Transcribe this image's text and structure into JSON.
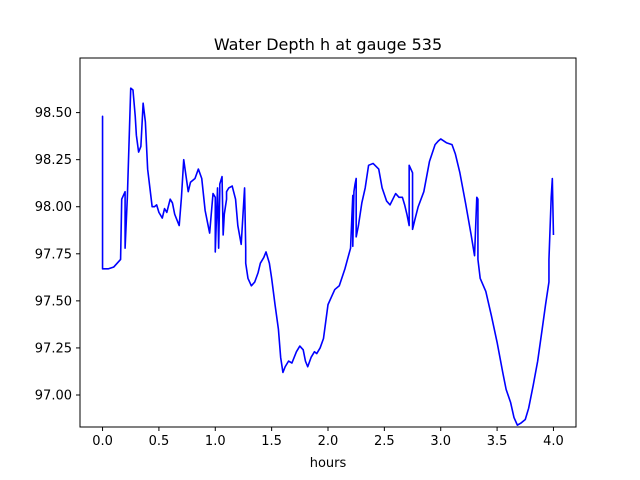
{
  "chart_data": {
    "type": "line",
    "title": "Water Depth h at gauge 535",
    "xlabel": "hours",
    "ylabel": "",
    "xlim": [
      -0.2,
      4.2
    ],
    "ylim": [
      96.83,
      98.79
    ],
    "xticks": [
      0.0,
      0.5,
      1.0,
      1.5,
      2.0,
      2.5,
      3.0,
      3.5,
      4.0
    ],
    "xtick_labels": [
      "0.0",
      "0.5",
      "1.0",
      "1.5",
      "2.0",
      "2.5",
      "3.0",
      "3.5",
      "4.0"
    ],
    "yticks": [
      97.0,
      97.25,
      97.5,
      97.75,
      98.0,
      98.25,
      98.5
    ],
    "ytick_labels": [
      "97.00",
      "97.25",
      "97.50",
      "97.75",
      "98.00",
      "98.25",
      "98.50"
    ],
    "grid": false,
    "legend": "none",
    "series": [
      {
        "color": "#0000ff",
        "x": [
          0.0,
          0.0,
          0.0,
          0.05,
          0.1,
          0.13,
          0.16,
          0.17,
          0.17,
          0.2,
          0.2,
          0.22,
          0.25,
          0.27,
          0.29,
          0.3,
          0.32,
          0.34,
          0.36,
          0.38,
          0.4,
          0.42,
          0.44,
          0.46,
          0.48,
          0.5,
          0.53,
          0.55,
          0.57,
          0.6,
          0.62,
          0.64,
          0.66,
          0.68,
          0.7,
          0.72,
          0.76,
          0.78,
          0.82,
          0.85,
          0.88,
          0.91,
          0.93,
          0.95,
          0.98,
          1.0,
          1.0,
          1.02,
          1.03,
          1.04,
          1.04,
          1.06,
          1.07,
          1.08,
          1.1,
          1.1,
          1.12,
          1.15,
          1.18,
          1.2,
          1.23,
          1.26,
          1.27,
          1.27,
          1.29,
          1.32,
          1.35,
          1.38,
          1.4,
          1.43,
          1.45,
          1.48,
          1.5,
          1.53,
          1.56,
          1.58,
          1.6,
          1.62,
          1.65,
          1.68,
          1.72,
          1.75,
          1.78,
          1.8,
          1.82,
          1.85,
          1.88,
          1.9,
          1.93,
          1.96,
          2.0,
          2.03,
          2.06,
          2.1,
          2.15,
          2.2,
          2.22,
          2.22,
          2.23,
          2.24,
          2.25,
          2.25,
          2.27,
          2.3,
          2.33,
          2.36,
          2.4,
          2.45,
          2.48,
          2.52,
          2.55,
          2.6,
          2.63,
          2.66,
          2.68,
          2.7,
          2.72,
          2.72,
          2.75,
          2.75,
          2.77,
          2.8,
          2.85,
          2.9,
          2.95,
          2.98,
          3.0,
          3.05,
          3.1,
          3.13,
          3.17,
          3.22,
          3.27,
          3.3,
          3.32,
          3.33,
          3.33,
          3.35,
          3.4,
          3.45,
          3.5,
          3.55,
          3.58,
          3.62,
          3.65,
          3.68,
          3.71,
          3.75,
          3.78,
          3.82,
          3.86,
          3.9,
          3.93,
          3.96,
          3.96,
          3.98,
          3.99,
          4.0
        ],
        "y": [
          98.0,
          98.48,
          97.67,
          97.67,
          97.68,
          97.7,
          97.72,
          98.04,
          98.04,
          98.08,
          97.78,
          98.05,
          98.63,
          98.62,
          98.48,
          98.38,
          98.29,
          98.32,
          98.55,
          98.45,
          98.2,
          98.1,
          98.0,
          98.0,
          98.01,
          97.97,
          97.94,
          97.99,
          97.97,
          98.04,
          98.02,
          97.96,
          97.93,
          97.9,
          98.05,
          98.25,
          98.08,
          98.13,
          98.15,
          98.2,
          98.15,
          97.98,
          97.92,
          97.86,
          98.07,
          98.05,
          97.76,
          98.1,
          97.78,
          98.08,
          98.12,
          98.16,
          97.85,
          97.96,
          98.04,
          98.08,
          98.1,
          98.11,
          98.04,
          97.9,
          97.8,
          98.1,
          97.78,
          97.7,
          97.62,
          97.58,
          97.6,
          97.65,
          97.7,
          97.73,
          97.76,
          97.7,
          97.62,
          97.48,
          97.35,
          97.2,
          97.12,
          97.15,
          97.18,
          97.17,
          97.23,
          97.26,
          97.24,
          97.18,
          97.15,
          97.2,
          97.23,
          97.22,
          97.25,
          97.3,
          97.48,
          97.52,
          97.56,
          97.58,
          97.67,
          97.78,
          98.06,
          97.79,
          98.08,
          98.12,
          98.15,
          97.84,
          97.9,
          98.02,
          98.1,
          98.22,
          98.23,
          98.2,
          98.1,
          98.03,
          98.01,
          98.07,
          98.05,
          98.05,
          98.01,
          97.96,
          97.9,
          98.22,
          98.18,
          97.88,
          97.93,
          98.0,
          98.08,
          98.24,
          98.33,
          98.35,
          98.36,
          98.34,
          98.33,
          98.28,
          98.18,
          98.02,
          97.85,
          97.74,
          98.05,
          98.04,
          97.72,
          97.62,
          97.55,
          97.42,
          97.28,
          97.12,
          97.03,
          96.96,
          96.88,
          96.84,
          96.85,
          96.87,
          96.93,
          97.05,
          97.18,
          97.35,
          97.48,
          97.6,
          97.72,
          98.05,
          98.15,
          97.85
        ]
      }
    ]
  }
}
